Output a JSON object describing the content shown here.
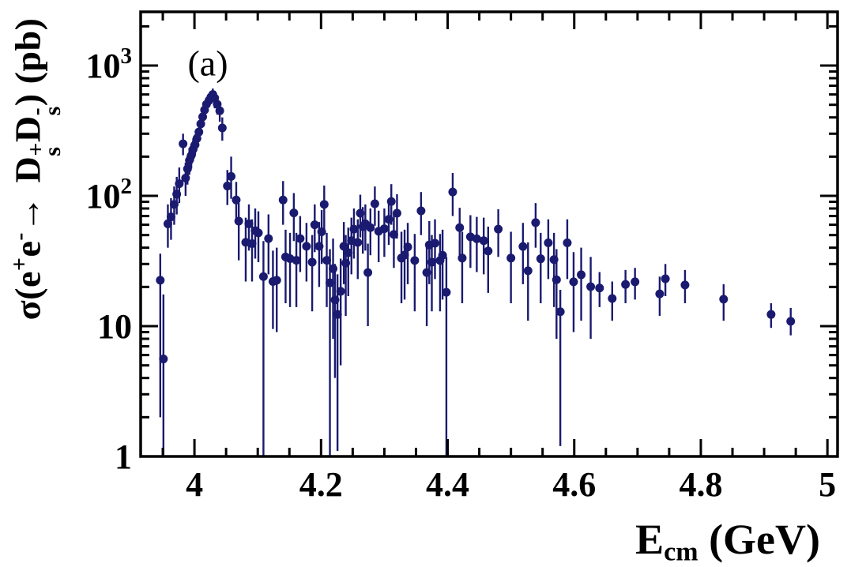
{
  "panel_label": "(a)",
  "labels": {
    "x_title": {
      "main": "E",
      "sub": "cm",
      "rest": " (GeV)"
    },
    "y_title": {
      "p1": "σ(e",
      "sup1": "+",
      "p2": "e",
      "sup2": "-",
      "arrow": "→",
      "d1": "D",
      "d1_sup": "+",
      "d1_sub": "s",
      "d2": "D",
      "d2_sup": "-",
      "d2_sub": "s",
      "p4": ") (pb)"
    }
  },
  "axes": {
    "x": {
      "min": 3.915,
      "max": 5.016,
      "major_ticks": [
        4.0,
        4.2,
        4.4,
        4.6,
        4.8,
        5.0
      ],
      "major_tick_labels": [
        "4",
        "4.2",
        "4.4",
        "4.6",
        "4.8",
        "5"
      ],
      "minor_step": 0.05
    },
    "y": {
      "scale": "log",
      "min": 1,
      "max": 2584,
      "major_ticks": [
        1,
        10,
        100,
        1000
      ],
      "major_tick_labels": [
        {
          "base": "1",
          "exp": ""
        },
        {
          "base": "10",
          "exp": ""
        },
        {
          "base": "10",
          "exp": "2"
        },
        {
          "base": "10",
          "exp": "3"
        }
      ]
    }
  },
  "style": {
    "marker_color": "#1a1a70",
    "axis_color": "#000000",
    "background": "#ffffff",
    "marker_radius": 5.5,
    "error_line_width": 2.4,
    "frame_line_width": 3.5,
    "major_tick_len": 22,
    "minor_tick_len": 11
  },
  "chart_data": {
    "type": "scatter",
    "title": "",
    "xlabel": "E_cm (GeV)",
    "ylabel": "σ(e+e− → Ds+Ds−) (pb)",
    "x_range": [
      3.915,
      5.016
    ],
    "y_range": [
      1,
      2584
    ],
    "y_scale": "log",
    "x_scale": "linear",
    "grid": false,
    "legend": false,
    "points_format": [
      "E_cm_GeV",
      "sigma_pb",
      "err_low_end_pb",
      "err_high_end_pb"
    ],
    "points": [
      [
        3.946,
        22.5,
        2.0,
        36
      ],
      [
        3.951,
        5.6,
        1.0,
        17.5
      ],
      [
        3.958,
        61,
        40,
        86
      ],
      [
        3.963,
        69,
        46,
        96
      ],
      [
        3.968,
        86,
        60,
        118
      ],
      [
        3.972,
        103,
        72,
        140
      ],
      [
        3.976,
        124,
        88,
        165
      ],
      [
        3.982,
        251,
        205,
        300
      ],
      [
        3.986,
        137,
        100,
        180
      ],
      [
        3.989,
        161,
        122,
        205
      ],
      [
        3.992,
        187,
        145,
        233
      ],
      [
        3.995,
        204,
        162,
        252
      ],
      [
        3.998,
        228,
        186,
        276
      ],
      [
        4.001,
        247,
        204,
        296
      ],
      [
        4.004,
        276,
        232,
        325
      ],
      [
        4.007,
        309,
        263,
        360
      ],
      [
        4.01,
        357,
        308,
        410
      ],
      [
        4.013,
        404,
        352,
        460
      ],
      [
        4.016,
        456,
        400,
        515
      ],
      [
        4.019,
        505,
        447,
        567
      ],
      [
        4.023,
        540,
        480,
        603
      ],
      [
        4.026,
        573,
        512,
        637
      ],
      [
        4.029,
        600,
        537,
        666
      ],
      [
        4.032,
        563,
        470,
        640
      ],
      [
        4.036,
        505,
        420,
        580
      ],
      [
        4.04,
        450,
        370,
        525
      ],
      [
        4.044,
        332,
        265,
        400
      ],
      [
        4.052,
        119,
        85,
        158
      ],
      [
        4.058,
        141,
        95,
        200
      ],
      [
        4.066,
        93,
        62,
        128
      ],
      [
        4.07,
        64,
        32,
        88
      ],
      [
        4.081,
        44,
        22,
        68
      ],
      [
        4.086,
        61,
        38,
        86
      ],
      [
        4.091,
        43,
        22,
        66
      ],
      [
        4.096,
        54,
        33,
        80
      ],
      [
        4.101,
        52,
        31,
        76
      ],
      [
        4.109,
        24,
        1.0,
        45
      ],
      [
        4.117,
        47,
        25,
        72
      ],
      [
        4.124,
        22,
        9.5,
        38
      ],
      [
        4.13,
        22.5,
        9,
        40
      ],
      [
        4.14,
        93,
        60,
        130
      ],
      [
        4.144,
        34,
        15,
        55
      ],
      [
        4.151,
        33,
        14,
        52
      ],
      [
        4.157,
        74,
        45,
        105
      ],
      [
        4.161,
        32,
        14,
        52
      ],
      [
        4.167,
        47,
        26,
        70
      ],
      [
        4.177,
        41,
        22,
        62
      ],
      [
        4.186,
        31,
        13,
        50
      ],
      [
        4.19,
        60,
        37,
        86
      ],
      [
        4.197,
        41,
        20,
        63
      ],
      [
        4.201,
        53,
        30,
        78
      ],
      [
        4.205,
        86,
        55,
        120
      ],
      [
        4.209,
        32,
        14,
        52
      ],
      [
        4.214,
        21.5,
        1.0,
        39
      ],
      [
        4.219,
        27.6,
        8,
        47
      ],
      [
        4.222,
        15.9,
        4,
        30
      ],
      [
        4.226,
        12.3,
        1.1,
        25
      ],
      [
        4.231,
        18.5,
        5,
        33
      ],
      [
        4.236,
        41,
        21,
        63
      ],
      [
        4.239,
        30.5,
        12,
        50
      ],
      [
        4.243,
        36.6,
        17,
        57
      ],
      [
        4.248,
        45.3,
        25,
        68
      ],
      [
        4.252,
        55.6,
        33,
        80
      ],
      [
        4.258,
        43.9,
        23,
        66
      ],
      [
        4.262,
        73.6,
        48,
        102
      ],
      [
        4.266,
        58,
        36,
        82
      ],
      [
        4.27,
        61,
        38,
        86
      ],
      [
        4.274,
        25.8,
        10,
        43
      ],
      [
        4.278,
        57,
        35,
        80
      ],
      [
        4.285,
        87,
        59,
        118
      ],
      [
        4.291,
        53.5,
        31,
        77
      ],
      [
        4.3,
        56,
        34,
        80
      ],
      [
        4.307,
        66,
        42,
        92
      ],
      [
        4.311,
        90.6,
        60,
        123
      ],
      [
        4.315,
        50.6,
        28,
        74
      ],
      [
        4.32,
        73.6,
        47,
        103
      ],
      [
        4.327,
        33.3,
        15,
        53
      ],
      [
        4.332,
        35.1,
        16,
        55
      ],
      [
        4.337,
        40.5,
        21,
        62
      ],
      [
        4.348,
        31.9,
        13,
        51
      ],
      [
        4.358,
        76.7,
        50,
        107
      ],
      [
        4.367,
        25.8,
        10,
        43
      ],
      [
        4.371,
        42,
        21,
        64
      ],
      [
        4.375,
        31,
        13,
        50
      ],
      [
        4.38,
        43.3,
        23,
        66
      ],
      [
        4.388,
        31.9,
        13,
        51
      ],
      [
        4.392,
        35,
        16,
        55
      ],
      [
        4.398,
        18.2,
        1.0,
        34
      ],
      [
        4.408,
        107,
        70,
        150
      ],
      [
        4.419,
        57,
        35,
        81
      ],
      [
        4.423,
        33.3,
        15,
        53
      ],
      [
        4.436,
        48.5,
        28,
        71
      ],
      [
        4.446,
        46.8,
        26,
        69
      ],
      [
        4.457,
        45.3,
        25,
        68
      ],
      [
        4.464,
        37.7,
        18,
        58
      ],
      [
        4.48,
        55.6,
        34,
        79
      ],
      [
        4.5,
        33.3,
        15,
        53
      ],
      [
        4.519,
        40.9,
        21,
        62
      ],
      [
        4.527,
        26.6,
        11,
        44
      ],
      [
        4.539,
        62.3,
        40,
        88
      ],
      [
        4.547,
        32.9,
        15,
        52
      ],
      [
        4.559,
        43.6,
        23,
        66
      ],
      [
        4.568,
        32.4,
        14,
        52
      ],
      [
        4.572,
        22.7,
        8,
        39
      ],
      [
        4.578,
        12.9,
        1.2,
        19
      ],
      [
        4.589,
        43.6,
        23,
        66
      ],
      [
        4.599,
        21.9,
        9,
        37
      ],
      [
        4.611,
        24.8,
        11,
        40
      ],
      [
        4.626,
        20.1,
        8,
        34
      ],
      [
        4.64,
        19.6,
        14,
        26
      ],
      [
        4.66,
        16.3,
        11,
        22
      ],
      [
        4.681,
        20.9,
        15,
        27
      ],
      [
        4.696,
        21.9,
        16,
        28
      ],
      [
        4.735,
        17.7,
        12,
        24
      ],
      [
        4.744,
        23.1,
        17,
        30
      ],
      [
        4.775,
        20.7,
        15,
        27
      ],
      [
        4.836,
        16.1,
        11,
        21
      ],
      [
        4.911,
        12.3,
        9.7,
        15
      ],
      [
        4.942,
        10.9,
        8.5,
        13.8
      ]
    ]
  }
}
